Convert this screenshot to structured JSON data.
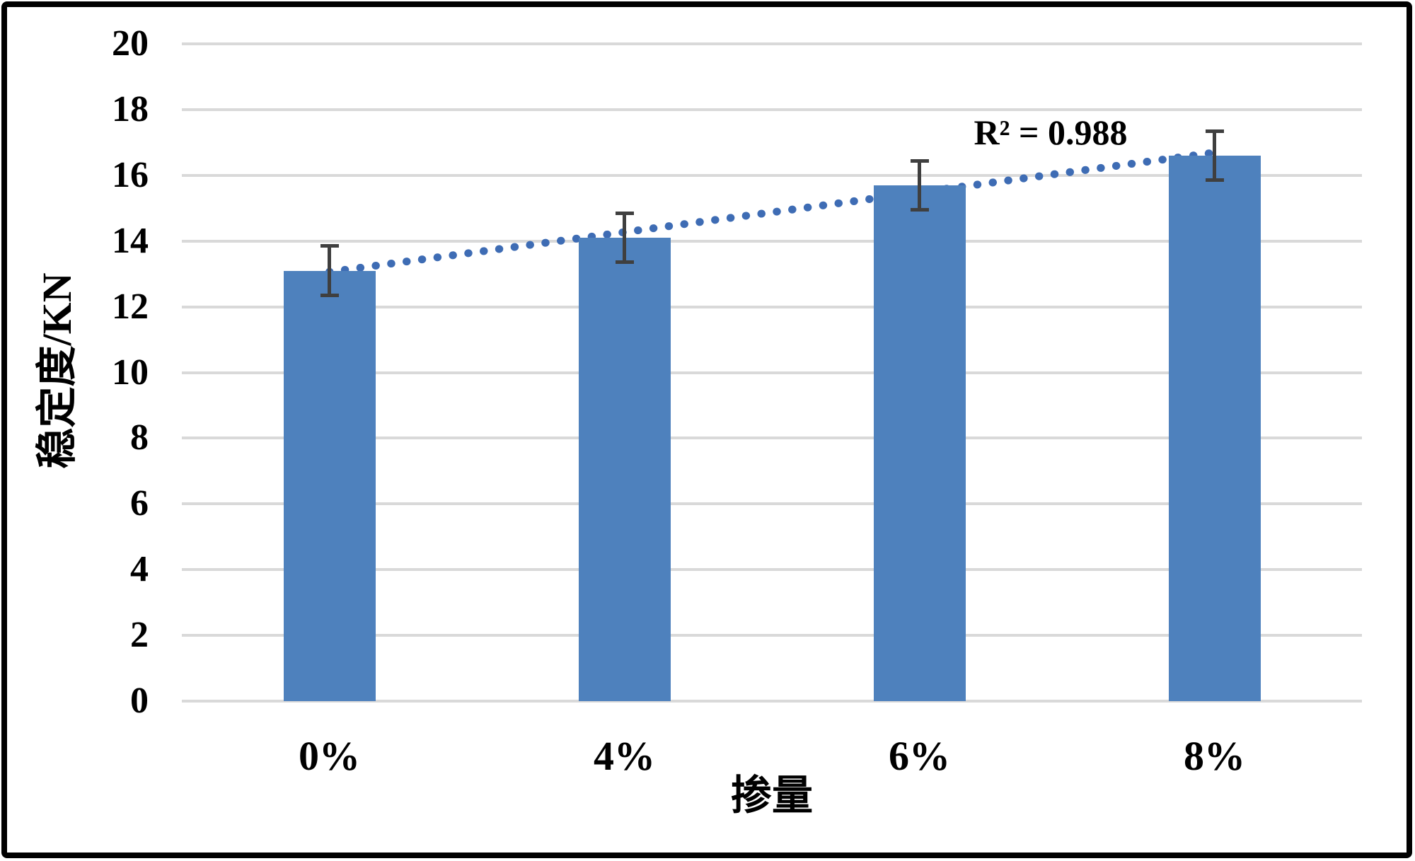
{
  "figure": {
    "background": "#FFFFFF",
    "border_color": "#000000"
  },
  "chart_data": {
    "type": "bar",
    "title": "",
    "xlabel": "掺量",
    "ylabel": "稳定度/KN",
    "categories": [
      "0%",
      "4%",
      "6%",
      "8%"
    ],
    "values": [
      13.1,
      14.1,
      15.7,
      16.6
    ],
    "error_bars": [
      0.8,
      0.8,
      0.8,
      0.8
    ],
    "ylim": [
      0,
      20
    ],
    "yticks": [
      0,
      2,
      4,
      6,
      8,
      10,
      12,
      14,
      16,
      18,
      20
    ],
    "grid": true,
    "legend": "none",
    "bar_color": "#4E81BD",
    "error_bar_color": "#3F3F3F",
    "gridline_color": "#D9D9D9",
    "trendline": {
      "type": "linear",
      "style": "dotted",
      "color": "#3E6CB4",
      "label": "R² = 0.988",
      "start_value": 13.06,
      "end_value": 16.69
    }
  }
}
